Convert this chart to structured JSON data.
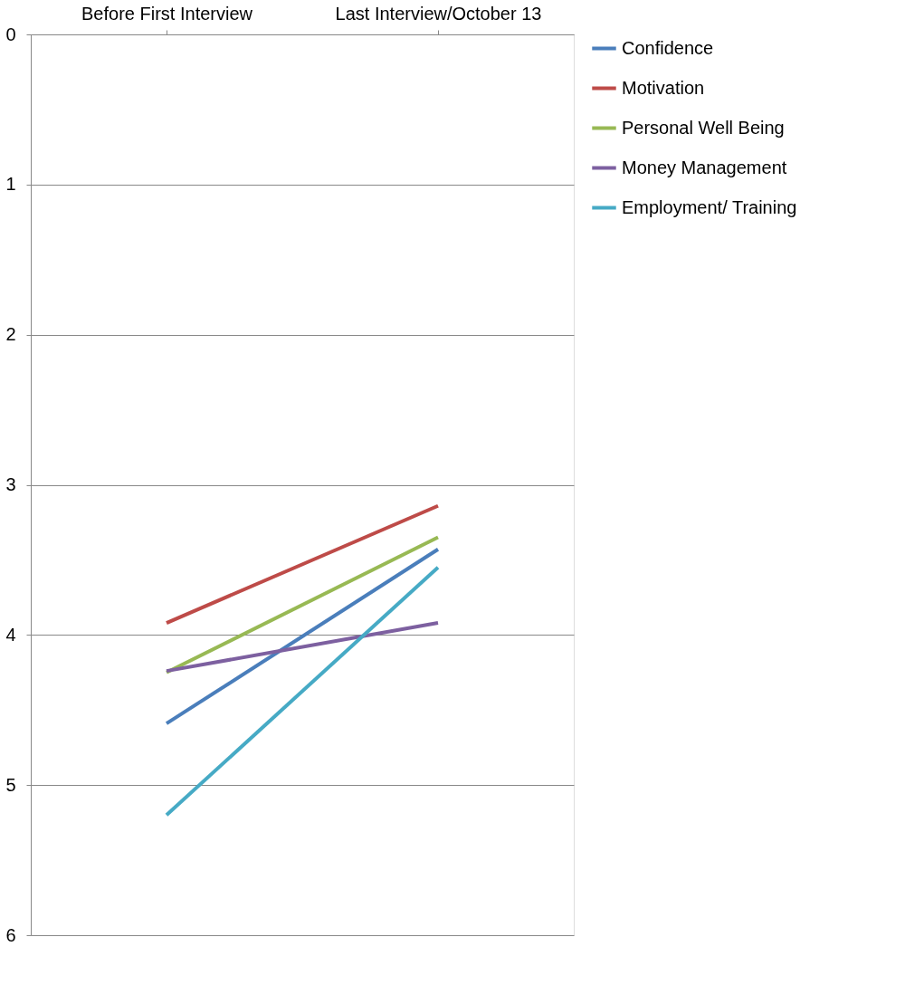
{
  "chart_data": {
    "type": "line",
    "categories": [
      "Before First Interview",
      "Last Interview/October 13"
    ],
    "series": [
      {
        "name": "Confidence",
        "color": "#4a7ebb",
        "values": [
          4.59,
          3.43
        ]
      },
      {
        "name": "Motivation",
        "color": "#be4b48",
        "values": [
          3.92,
          3.14
        ]
      },
      {
        "name": "Personal Well Being",
        "color": "#98b954",
        "values": [
          4.25,
          3.35
        ]
      },
      {
        "name": "Money Management",
        "color": "#7d60a0",
        "values": [
          4.24,
          3.92
        ]
      },
      {
        "name": "Employment/ Training",
        "color": "#46aac5",
        "values": [
          5.2,
          3.55
        ]
      }
    ],
    "ylim": [
      6,
      0
    ],
    "yticks": [
      0,
      1,
      2,
      3,
      4,
      5,
      6
    ],
    "grid": "y",
    "legend": "right",
    "marker": "none",
    "line_style": "solid"
  }
}
